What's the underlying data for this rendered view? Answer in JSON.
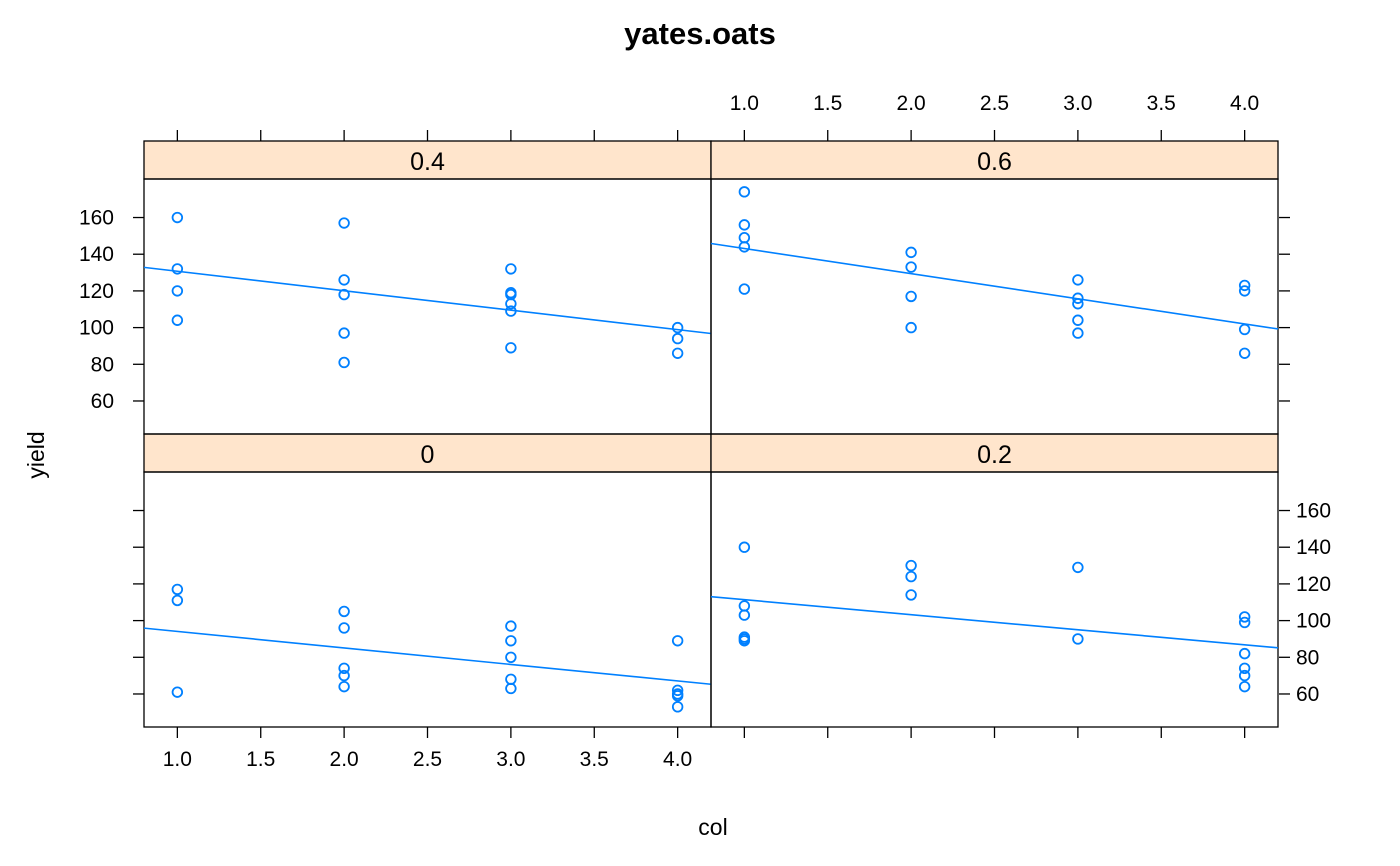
{
  "chart_data": {
    "type": "scatter",
    "title": "yates.oats",
    "xlabel": "col",
    "ylabel": "yield",
    "xlim": [
      0.8,
      4.2
    ],
    "ylim": [
      42,
      181
    ],
    "x_ticks": [
      1.0,
      1.5,
      2.0,
      2.5,
      3.0,
      3.5,
      4.0
    ],
    "x_tick_labels": [
      "1.0",
      "1.5",
      "2.0",
      "2.5",
      "3.0",
      "3.5",
      "4.0"
    ],
    "y_ticks": [
      60,
      80,
      100,
      120,
      140,
      160
    ],
    "y_tick_labels": [
      "60",
      "80",
      "100",
      "120",
      "140",
      "160"
    ],
    "grid": false,
    "legend": "none",
    "marker_color": "#0080ff",
    "strip_color": "#ffe5cc",
    "panels": [
      {
        "strip": "0",
        "points": [
          [
            1,
            117
          ],
          [
            1,
            111
          ],
          [
            1,
            61
          ],
          [
            2,
            105
          ],
          [
            2,
            96
          ],
          [
            2,
            74
          ],
          [
            2,
            70
          ],
          [
            2,
            64
          ],
          [
            3,
            97
          ],
          [
            3,
            89
          ],
          [
            3,
            80
          ],
          [
            3,
            68
          ],
          [
            3,
            63
          ],
          [
            4,
            89
          ],
          [
            4,
            62
          ],
          [
            4,
            60
          ],
          [
            4,
            59
          ],
          [
            4,
            53
          ]
        ],
        "fit": {
          "intercept": 103.1,
          "slope": -9.0
        }
      },
      {
        "strip": "0.2",
        "points": [
          [
            1,
            140
          ],
          [
            1,
            108
          ],
          [
            1,
            103
          ],
          [
            1,
            91
          ],
          [
            1,
            90
          ],
          [
            1,
            89
          ],
          [
            2,
            130
          ],
          [
            2,
            124
          ],
          [
            2,
            114
          ],
          [
            3,
            129
          ],
          [
            3,
            90
          ],
          [
            4,
            102
          ],
          [
            4,
            99
          ],
          [
            4,
            82
          ],
          [
            4,
            74
          ],
          [
            4,
            70
          ],
          [
            4,
            64
          ]
        ],
        "fit": {
          "intercept": 119.6,
          "slope": -8.2
        }
      },
      {
        "strip": "0.4",
        "points": [
          [
            1,
            160
          ],
          [
            1,
            132
          ],
          [
            1,
            120
          ],
          [
            1,
            104
          ],
          [
            2,
            157
          ],
          [
            2,
            126
          ],
          [
            2,
            118
          ],
          [
            2,
            97
          ],
          [
            2,
            81
          ],
          [
            3,
            132
          ],
          [
            3,
            119
          ],
          [
            3,
            118
          ],
          [
            3,
            113
          ],
          [
            3,
            109
          ],
          [
            3,
            89
          ],
          [
            4,
            100
          ],
          [
            4,
            94
          ],
          [
            4,
            86
          ]
        ],
        "fit": {
          "intercept": 141.3,
          "slope": -10.6
        }
      },
      {
        "strip": "0.6",
        "points": [
          [
            1,
            174
          ],
          [
            1,
            156
          ],
          [
            1,
            149
          ],
          [
            1,
            144
          ],
          [
            1,
            121
          ],
          [
            2,
            141
          ],
          [
            2,
            133
          ],
          [
            2,
            117
          ],
          [
            2,
            100
          ],
          [
            3,
            126
          ],
          [
            3,
            116
          ],
          [
            3,
            113
          ],
          [
            3,
            104
          ],
          [
            3,
            97
          ],
          [
            4,
            123
          ],
          [
            4,
            120
          ],
          [
            4,
            99
          ],
          [
            4,
            86
          ]
        ],
        "fit": {
          "intercept": 156.8,
          "slope": -13.7
        }
      }
    ]
  }
}
